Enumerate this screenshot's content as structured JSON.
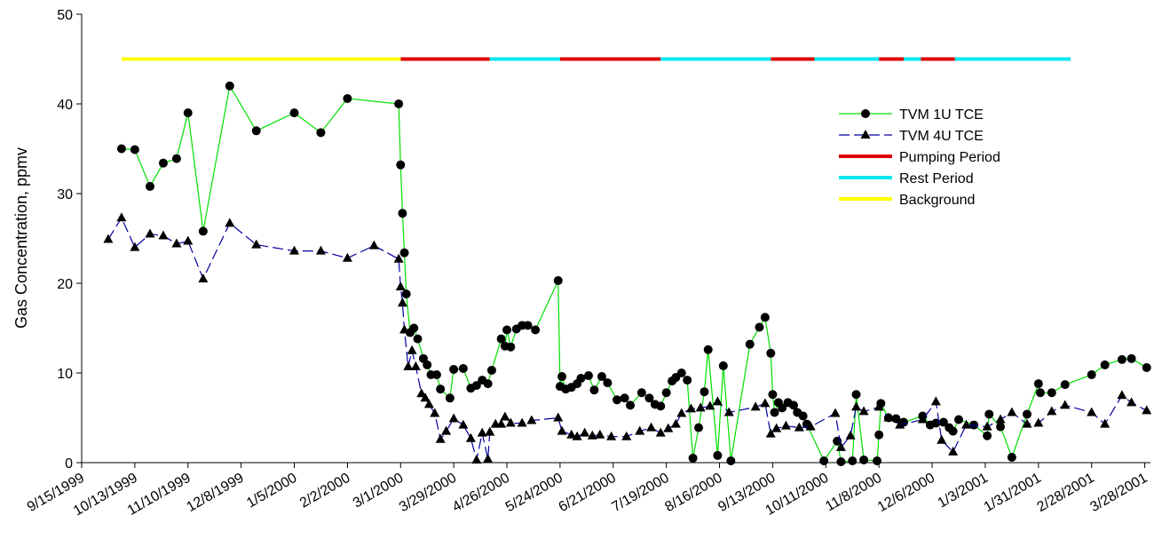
{
  "chart_data": {
    "type": "line",
    "y_label": "Gas Concentration, ppmv",
    "xlim": [
      "9/15/1999",
      "3/31/2001"
    ],
    "xticks": [
      "9/15/1999",
      "10/13/1999",
      "11/10/1999",
      "12/8/1999",
      "1/5/2000",
      "2/2/2000",
      "3/1/2000",
      "3/29/2000",
      "4/26/2000",
      "5/24/2000",
      "6/21/2000",
      "7/19/2000",
      "8/16/2000",
      "9/13/2000",
      "10/11/2000",
      "11/8/2000",
      "12/6/2000",
      "1/3/2001",
      "1/31/2001",
      "2/28/2001",
      "3/28/2001"
    ],
    "ylim": [
      0,
      50
    ],
    "yticks": [
      0,
      10,
      20,
      30,
      40,
      50
    ],
    "series": [
      {
        "name": "TVM 1U TCE",
        "color": "#00e000",
        "marker": "circle",
        "marker_color": "#000000",
        "dash": false,
        "x": [
          "10/6/1999",
          "10/13/1999",
          "10/21/1999",
          "10/28/1999",
          "11/4/1999",
          "11/10/1999",
          "11/18/1999",
          "12/2/1999",
          "12/16/1999",
          "1/5/2000",
          "1/19/2000",
          "2/2/2000",
          "2/29/2000",
          "3/1/2000",
          "3/2/2000",
          "3/3/2000",
          "3/4/2000",
          "3/6/2000",
          "3/8/2000",
          "3/10/2000",
          "3/13/2000",
          "3/15/2000",
          "3/17/2000",
          "3/20/2000",
          "3/22/2000",
          "3/27/2000",
          "3/29/2000",
          "4/3/2000",
          "4/7/2000",
          "4/10/2000",
          "4/13/2000",
          "4/16/2000",
          "4/18/2000",
          "4/23/2000",
          "4/25/2000",
          "4/26/2000",
          "4/28/2000",
          "5/1/2000",
          "5/4/2000",
          "5/7/2000",
          "5/11/2000",
          "5/23/2000",
          "5/24/2000",
          "5/25/2000",
          "5/27/2000",
          "5/30/2000",
          "6/2/2000",
          "6/4/2000",
          "6/8/2000",
          "6/11/2000",
          "6/15/2000",
          "6/18/2000",
          "6/23/2000",
          "6/27/2000",
          "6/30/2000",
          "7/6/2000",
          "7/10/2000",
          "7/13/2000",
          "7/16/2000",
          "7/19/2000",
          "7/22/2000",
          "7/24/2000",
          "7/27/2000",
          "7/30/2000",
          "8/2/2000",
          "8/5/2000",
          "8/8/2000",
          "8/10/2000",
          "8/15/2000",
          "8/18/2000",
          "8/22/2000",
          "9/1/2000",
          "9/6/2000",
          "9/9/2000",
          "9/12/2000",
          "9/13/2000",
          "9/14/2000",
          "9/16/2000",
          "9/18/2000",
          "9/21/2000",
          "9/24/2000",
          "9/26/2000",
          "9/29/2000",
          "10/1/2000",
          "10/10/2000",
          "10/17/2000",
          "10/19/2000",
          "10/25/2000",
          "10/27/2000",
          "10/31/2000",
          "11/7/2000",
          "11/8/2000",
          "11/9/2000",
          "11/13/2000",
          "11/17/2000",
          "11/21/2000",
          "12/1/2000",
          "12/5/2000",
          "12/8/2000",
          "12/12/2000",
          "12/15/2000",
          "12/17/2000",
          "12/20/2000",
          "12/28/2000",
          "1/4/2001",
          "1/5/2001",
          "1/11/2001",
          "1/17/2001",
          "1/25/2001",
          "1/31/2001",
          "2/1/2001",
          "2/7/2001",
          "2/14/2001",
          "2/28/2001",
          "3/7/2001",
          "3/16/2001",
          "3/21/2001",
          "3/29/2001"
        ],
        "values": [
          35,
          34.9,
          30.8,
          33.4,
          33.9,
          39,
          25.8,
          42,
          37,
          39,
          36.8,
          40.6,
          40,
          33.2,
          27.8,
          23.4,
          18.8,
          14.5,
          15,
          13.8,
          11.6,
          10.9,
          9.8,
          9.8,
          8.2,
          7.2,
          10.4,
          10.5,
          8.3,
          8.6,
          9.2,
          8.8,
          10.3,
          13.8,
          13,
          14.8,
          12.9,
          14.9,
          15.3,
          15.3,
          14.8,
          20.3,
          8.5,
          9.6,
          8.2,
          8.4,
          8.8,
          9.4,
          9.7,
          8.1,
          9.6,
          8.9,
          7,
          7.2,
          6.4,
          7.8,
          7.2,
          6.5,
          6.3,
          7.8,
          9.1,
          9.5,
          10,
          9.2,
          0.5,
          3.9,
          7.9,
          12.6,
          0.8,
          10.8,
          0.2,
          13.2,
          15.1,
          16.2,
          12.2,
          7.6,
          5.6,
          6.7,
          6.1,
          6.7,
          6.4,
          5.6,
          5.2,
          4.3,
          0.2,
          2.4,
          0.1,
          0.2,
          7.6,
          0.3,
          0.2,
          3.1,
          6.6,
          5,
          4.9,
          4.5,
          5.2,
          4.2,
          4.4,
          4.5,
          3.9,
          3.5,
          4.8,
          4.2,
          3,
          5.4,
          4,
          0.6,
          5.4,
          8.8,
          7.8,
          7.8,
          8.7,
          9.8,
          10.9,
          11.5,
          11.6,
          10.6
        ]
      },
      {
        "name": "TVM 4U TCE",
        "color": "#0000a0",
        "marker": "triangle",
        "marker_color": "#000000",
        "dash": true,
        "x": [
          "9/29/1999",
          "10/6/1999",
          "10/13/1999",
          "10/21/1999",
          "10/28/1999",
          "11/4/1999",
          "11/10/1999",
          "11/18/1999",
          "12/2/1999",
          "12/16/1999",
          "1/5/2000",
          "1/19/2000",
          "2/2/2000",
          "2/16/2000",
          "2/29/2000",
          "3/1/2000",
          "3/2/2000",
          "3/3/2000",
          "3/5/2000",
          "3/7/2000",
          "3/9/2000",
          "3/12/2000",
          "3/14/2000",
          "3/16/2000",
          "3/19/2000",
          "3/22/2000",
          "3/25/2000",
          "3/29/2000",
          "4/3/2000",
          "4/7/2000",
          "4/10/2000",
          "4/13/2000",
          "4/16/2000",
          "4/17/2000",
          "4/20/2000",
          "4/23/2000",
          "4/25/2000",
          "4/28/2000",
          "5/4/2000",
          "5/9/2000",
          "5/23/2000",
          "5/25/2000",
          "5/30/2000",
          "6/2/2000",
          "6/6/2000",
          "6/10/2000",
          "6/14/2000",
          "6/20/2000",
          "6/28/2000",
          "7/5/2000",
          "7/11/2000",
          "7/16/2000",
          "7/20/2000",
          "7/24/2000",
          "7/27/2000",
          "8/1/2000",
          "8/6/2000",
          "8/11/2000",
          "8/15/2000",
          "8/21/2000",
          "9/4/2000",
          "9/9/2000",
          "9/12/2000",
          "9/15/2000",
          "9/20/2000",
          "9/27/2000",
          "10/3/2000",
          "10/16/2000",
          "10/19/2000",
          "10/24/2000",
          "10/27/2000",
          "10/31/2000",
          "11/8/2000",
          "11/13/2000",
          "11/19/2000",
          "12/1/2000",
          "12/8/2000",
          "12/11/2000",
          "12/17/2000",
          "12/24/2000",
          "1/4/2001",
          "1/11/2001",
          "1/17/2001",
          "1/25/2001",
          "1/31/2001",
          "2/7/2001",
          "2/14/2001",
          "2/28/2001",
          "3/7/2001",
          "3/16/2001",
          "3/21/2001",
          "3/29/2001"
        ],
        "values": [
          24.9,
          27.3,
          24,
          25.5,
          25.3,
          24.4,
          24.7,
          20.5,
          26.7,
          24.3,
          23.6,
          23.6,
          22.8,
          24.2,
          22.7,
          19.6,
          17.8,
          14.8,
          10.7,
          12.5,
          10.7,
          7.7,
          7.2,
          6.5,
          5.5,
          2.6,
          3.5,
          4.9,
          4.2,
          2.7,
          0.3,
          3.3,
          0.4,
          3.4,
          4.3,
          4.3,
          5.1,
          4.4,
          4.4,
          4.7,
          5,
          3.5,
          3.1,
          2.9,
          3.3,
          3,
          3.1,
          2.9,
          2.9,
          3.5,
          3.9,
          3.3,
          3.8,
          4.3,
          5.5,
          6,
          6.1,
          6.3,
          6.8,
          5.6,
          6.2,
          6.6,
          3.2,
          3.8,
          4.1,
          3.9,
          4,
          5.5,
          1.7,
          3,
          6.2,
          5.7,
          6.2,
          5,
          4.2,
          4.8,
          6.8,
          2.5,
          1.2,
          4.2,
          4,
          4.8,
          5.6,
          4.3,
          4.4,
          5.7,
          6.4,
          5.6,
          4.3,
          7.5,
          6.7,
          5.8
        ]
      },
      {
        "name": "Pumping Period",
        "color": "#e00000",
        "segments": [
          {
            "x": [
              "3/1/2000",
              "4/17/2000"
            ],
            "values": [
              45,
              45
            ]
          },
          {
            "x": [
              "5/24/2000",
              "7/16/2000"
            ],
            "values": [
              45,
              45
            ]
          },
          {
            "x": [
              "9/12/2000",
              "10/5/2000"
            ],
            "values": [
              45,
              45
            ]
          },
          {
            "x": [
              "11/8/2000",
              "11/21/2000"
            ],
            "values": [
              45,
              45
            ]
          },
          {
            "x": [
              "11/30/2000",
              "12/18/2000"
            ],
            "values": [
              45,
              45
            ]
          }
        ]
      },
      {
        "name": "Rest Period",
        "color": "#00e8f0",
        "segments": [
          {
            "x": [
              "4/17/2000",
              "5/24/2000"
            ],
            "values": [
              45,
              45
            ]
          },
          {
            "x": [
              "7/16/2000",
              "9/12/2000"
            ],
            "values": [
              45,
              45
            ]
          },
          {
            "x": [
              "10/5/2000",
              "11/8/2000"
            ],
            "values": [
              45,
              45
            ]
          },
          {
            "x": [
              "11/21/2000",
              "11/30/2000"
            ],
            "values": [
              45,
              45
            ]
          },
          {
            "x": [
              "12/18/2000",
              "2/17/2001"
            ],
            "values": [
              45,
              45
            ]
          }
        ]
      },
      {
        "name": "Background",
        "color": "#ffff00",
        "segments": [
          {
            "x": [
              "10/6/1999",
              "3/1/2000"
            ],
            "values": [
              45,
              45
            ]
          }
        ]
      }
    ]
  }
}
